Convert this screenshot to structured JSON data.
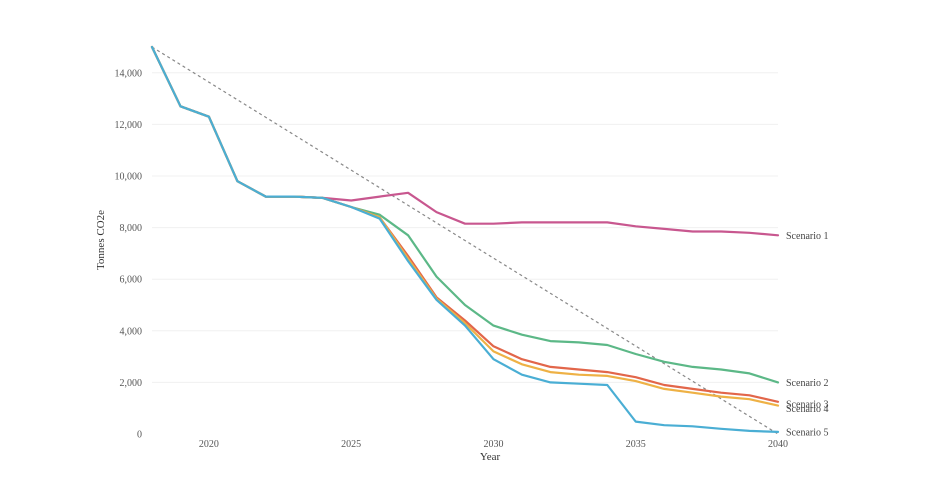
{
  "chart_data": {
    "type": "line",
    "xlabel": "Year",
    "ylabel": "Tonnes CO2e",
    "xlim": [
      2018,
      2040
    ],
    "ylim": [
      0,
      15000
    ],
    "x_ticks": [
      2020,
      2025,
      2030,
      2035,
      2040
    ],
    "y_ticks": [
      0,
      2000,
      4000,
      6000,
      8000,
      10000,
      12000,
      14000
    ],
    "y_tick_labels": [
      "0",
      "2,000",
      "4,000",
      "6,000",
      "8,000",
      "10,000",
      "12,000",
      "14,000"
    ],
    "grid": "horizontal",
    "legend": "labels at line ends (right)",
    "x": [
      2018,
      2019,
      2020,
      2021,
      2022,
      2023,
      2024,
      2025,
      2026,
      2027,
      2028,
      2029,
      2030,
      2031,
      2032,
      2033,
      2034,
      2035,
      2036,
      2037,
      2038,
      2039,
      2040
    ],
    "series": [
      {
        "name": "Scenario 1",
        "color": "#c8578f",
        "values": [
          15000,
          12700,
          12300,
          9800,
          9200,
          9200,
          9150,
          9050,
          9200,
          9350,
          8600,
          8150,
          8150,
          8200,
          8200,
          8200,
          8200,
          8050,
          7950,
          7850,
          7850,
          7800,
          7700
        ]
      },
      {
        "name": "Scenario 2",
        "color": "#5cb887",
        "values": [
          15000,
          12700,
          12300,
          9800,
          9200,
          9200,
          9150,
          8800,
          8500,
          7700,
          6100,
          5000,
          4200,
          3850,
          3600,
          3550,
          3450,
          3100,
          2800,
          2600,
          2500,
          2350,
          2000
        ]
      },
      {
        "name": "Scenario 3",
        "color": "#e2664a",
        "values": [
          15000,
          12700,
          12300,
          9800,
          9200,
          9200,
          9150,
          8800,
          8400,
          6900,
          5300,
          4400,
          3400,
          2900,
          2600,
          2500,
          2400,
          2200,
          1900,
          1750,
          1600,
          1500,
          1250
        ]
      },
      {
        "name": "Scenario 4",
        "color": "#eeb145",
        "values": [
          15000,
          12700,
          12300,
          9800,
          9200,
          9200,
          9150,
          8800,
          8400,
          6800,
          5250,
          4300,
          3200,
          2700,
          2400,
          2300,
          2250,
          2050,
          1750,
          1600,
          1450,
          1350,
          1100
        ]
      },
      {
        "name": "Scenario 5",
        "color": "#4aaed4",
        "values": [
          15000,
          12700,
          12300,
          9800,
          9200,
          9200,
          9150,
          8800,
          8350,
          6700,
          5200,
          4200,
          2900,
          2300,
          2000,
          1950,
          1900,
          480,
          340,
          300,
          200,
          120,
          80
        ]
      }
    ],
    "reference_line": {
      "style": "dashed",
      "color": "#888888",
      "x": [
        2018,
        2040
      ],
      "values": [
        15000,
        0
      ]
    }
  }
}
